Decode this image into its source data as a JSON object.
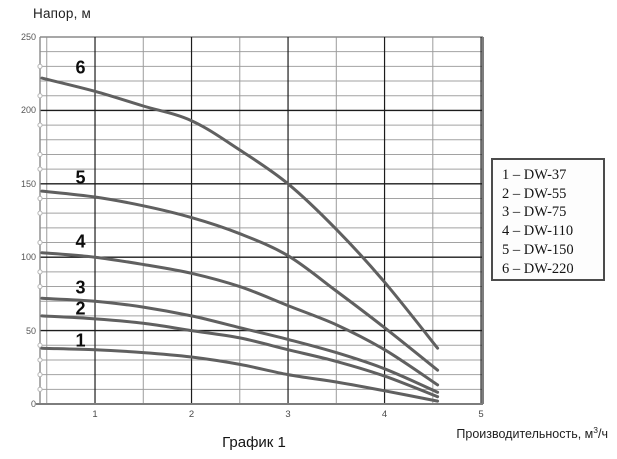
{
  "header": {
    "title": "Напор, м"
  },
  "caption": "График 1",
  "xaxis_label": {
    "pre": "Производительность, м",
    "sup": "3",
    "post": "/ч"
  },
  "legend": {
    "items": [
      "1 – DW-37",
      "2 – DW-55",
      "3 – DW-75",
      "4 – DW-110",
      "5 – DW-150",
      "6 – DW-220"
    ]
  },
  "chart_data": {
    "type": "line",
    "title": "Напор, м",
    "xlabel": "Производительность, м³/ч",
    "ylabel": "Напор, м",
    "xlim": [
      0.43,
      5.02
    ],
    "ylim": [
      0,
      250
    ],
    "x_ticks": [
      1,
      2,
      3,
      4,
      5
    ],
    "y_ticks": [
      0,
      50,
      100,
      150,
      200,
      250
    ],
    "x_minor_step": 0.5,
    "y_minor_step": 10,
    "grid": "major+minor",
    "legend_position": "outside-right",
    "curve_color": "#606060",
    "grid_major_color": "#1c1c1c",
    "grid_minor_color": "#a2a2a2",
    "x": [
      0.45,
      1.0,
      1.5,
      2.0,
      2.5,
      3.0,
      3.5,
      4.0,
      4.55
    ],
    "series": [
      {
        "name": "DW-37",
        "curve_label": "1",
        "values": [
          38,
          37,
          35,
          32,
          27,
          20,
          15,
          9,
          2
        ]
      },
      {
        "name": "DW-55",
        "curve_label": "2",
        "values": [
          60,
          58,
          55,
          50,
          45,
          37,
          29,
          19,
          5
        ]
      },
      {
        "name": "DW-75",
        "curve_label": "3",
        "values": [
          72,
          70,
          66,
          60,
          52,
          44,
          35,
          24,
          8
        ]
      },
      {
        "name": "DW-110",
        "curve_label": "4",
        "values": [
          103,
          100,
          95,
          89,
          80,
          67,
          54,
          37,
          13
        ]
      },
      {
        "name": "DW-150",
        "curve_label": "5",
        "values": [
          145,
          141,
          135,
          127,
          116,
          101,
          77,
          52,
          23
        ]
      },
      {
        "name": "DW-220",
        "curve_label": "6",
        "values": [
          222,
          213,
          203,
          193,
          173,
          150,
          119,
          83,
          38
        ]
      }
    ],
    "curve_number_positions": [
      {
        "x": 0.85,
        "y": 42
      },
      {
        "x": 0.85,
        "y": 64
      },
      {
        "x": 0.85,
        "y": 78
      },
      {
        "x": 0.85,
        "y": 110
      },
      {
        "x": 0.85,
        "y": 153
      },
      {
        "x": 0.85,
        "y": 228
      }
    ],
    "left_edge_marker_values": [
      10,
      20,
      30,
      40,
      80,
      90,
      110,
      130,
      140,
      160,
      170,
      190,
      210,
      230
    ]
  }
}
